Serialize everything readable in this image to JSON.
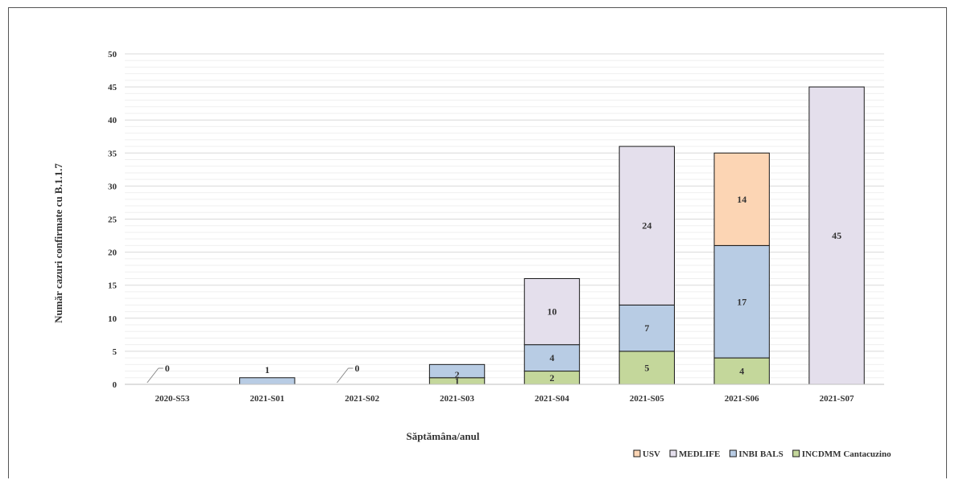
{
  "chart_data": {
    "type": "bar",
    "stacked": true,
    "categories": [
      "2020-S53",
      "2021-S01",
      "2021-S02",
      "2021-S03",
      "2021-S04",
      "2021-S05",
      "2021-S06",
      "2021-S07"
    ],
    "series": [
      {
        "name": "INCDMM Cantacuzino",
        "color": "#c4d79b",
        "values": [
          0,
          0,
          0,
          1,
          2,
          5,
          4,
          0
        ]
      },
      {
        "name": "INBI BALS",
        "color": "#b8cce4",
        "values": [
          0,
          1,
          0,
          2,
          4,
          7,
          17,
          0
        ]
      },
      {
        "name": "MEDLIFE",
        "color": "#e4dfec",
        "values": [
          0,
          0,
          0,
          0,
          10,
          24,
          0,
          45
        ]
      },
      {
        "name": "USV",
        "color": "#fcd5b4",
        "values": [
          0,
          0,
          0,
          0,
          0,
          0,
          14,
          0
        ]
      }
    ],
    "legend_order": [
      "USV",
      "MEDLIFE",
      "INBI BALS",
      "INCDMM Cantacuzino"
    ],
    "zero_labels": [
      "0",
      "",
      "0",
      "",
      "",
      "",
      "",
      ""
    ],
    "xlabel": "Săptămâna/anul",
    "ylabel": "Număr cazuri confirmate  cu B.1.1.7",
    "ylim": [
      0,
      50
    ],
    "yticks": [
      0,
      5,
      10,
      15,
      20,
      25,
      30,
      35,
      40,
      45,
      50
    ],
    "grid": true,
    "legend_position": "bottom-right"
  }
}
